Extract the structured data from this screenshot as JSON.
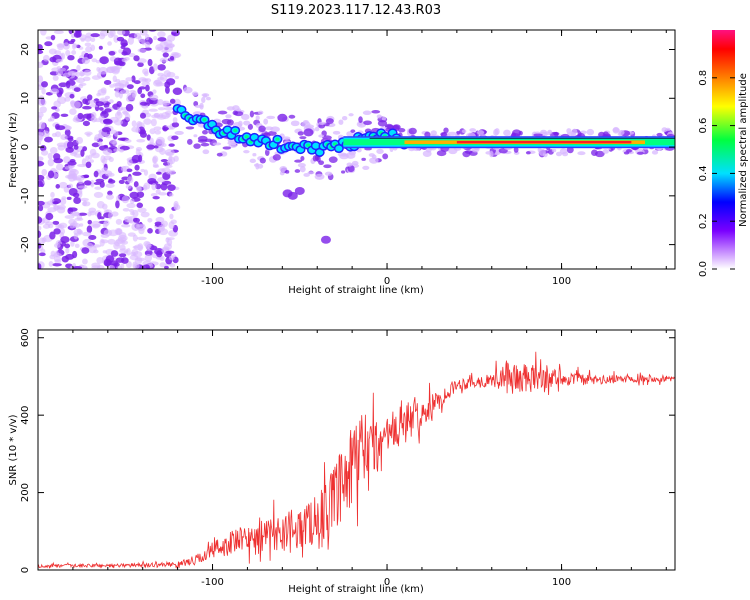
{
  "title": "S119.2023.117.12.43.R03",
  "colors": {
    "snr_line": "#ee3030",
    "spectrum_core": "#ff2020",
    "spectrum_mid": "#00ff80",
    "spectrum_low": "#7a20e8",
    "spectrum_faint": "#d8b8ff"
  },
  "chart_data": [
    {
      "type": "heatmap",
      "title": "S119.2023.117.12.43.R03",
      "xlabel": "Height of straight line (km)",
      "ylabel": "Frequency (Hz)",
      "xlim": [
        -200,
        165
      ],
      "ylim": [
        -25,
        24
      ],
      "x_ticks": [
        -100,
        0,
        100
      ],
      "y_ticks": [
        -20,
        -10,
        0,
        10,
        20
      ],
      "signal_ridge": {
        "x": [
          -120,
          -110,
          -100,
          -90,
          -80,
          -70,
          -60,
          -50,
          -40,
          -30,
          -20,
          -10,
          0,
          10,
          50,
          100,
          150,
          165
        ],
        "frequency_hz": [
          8,
          6,
          4,
          3,
          2,
          1,
          0.5,
          0,
          -0.5,
          0,
          1,
          1.5,
          2.5,
          1,
          1,
          1,
          1,
          1.5
        ]
      },
      "noise_region_x": [
        -200,
        -120
      ],
      "colorbar": {
        "label": "Normalized spectral amplitude",
        "range": [
          0,
          1
        ],
        "ticks": [
          0.0,
          0.2,
          0.4,
          0.6,
          0.8
        ],
        "tick_labels": [
          "0.0",
          "0.2",
          "0.4",
          "0.6",
          "0.8"
        ],
        "colormap": [
          "#ffffff",
          "#c080ff",
          "#7a00ff",
          "#0000ff",
          "#00e0ff",
          "#00ff40",
          "#ffff00",
          "#ff8000",
          "#ff0000",
          "#ff1080"
        ]
      }
    },
    {
      "type": "line",
      "xlabel": "Height of straight line (km)",
      "ylabel": "SNR (10 * v/v)",
      "xlim": [
        -200,
        165
      ],
      "ylim": [
        0,
        620
      ],
      "x_ticks": [
        -100,
        0,
        100
      ],
      "y_ticks": [
        0,
        200,
        400,
        600
      ],
      "series": [
        {
          "name": "SNR",
          "x": [
            -200,
            -150,
            -120,
            -110,
            -100,
            -90,
            -80,
            -70,
            -60,
            -50,
            -40,
            -30,
            -20,
            -15,
            -10,
            -5,
            0,
            10,
            20,
            30,
            40,
            60,
            70,
            80,
            90,
            100,
            120,
            140,
            165
          ],
          "values": [
            10,
            12,
            15,
            25,
            50,
            70,
            80,
            90,
            100,
            110,
            130,
            180,
            260,
            300,
            300,
            320,
            340,
            380,
            400,
            440,
            480,
            490,
            500,
            490,
            500,
            495,
            490,
            495,
            495
          ],
          "spread": [
            5,
            6,
            8,
            15,
            30,
            40,
            45,
            50,
            60,
            70,
            80,
            110,
            140,
            150,
            120,
            100,
            80,
            70,
            50,
            30,
            20,
            20,
            60,
            50,
            40,
            25,
            15,
            12,
            10
          ]
        }
      ]
    }
  ]
}
